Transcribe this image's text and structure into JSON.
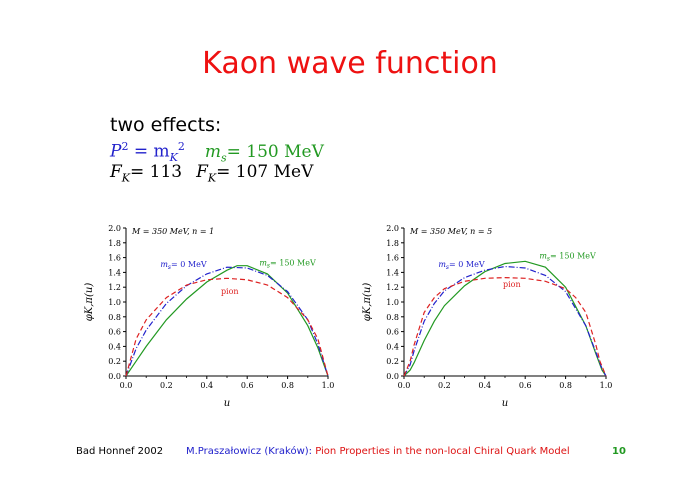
{
  "slide": {
    "title": "Kaon wave function",
    "effects_heading": "two effects:",
    "line1": {
      "p2": "P",
      "eq": " = m",
      "sub_k": "K",
      "sup2": "2",
      "ms": "m",
      "sub_s": "s",
      "ms_val": "= 150 MeV"
    },
    "line2": {
      "fk1": "F",
      "sub_k1": "K",
      "val1": "= 113",
      "fk2": "F",
      "sub_k2": "K",
      "val2": "= 107  MeV"
    }
  },
  "footer": {
    "left": "Bad Honnef 2002",
    "author": "M.Praszałowicz (Kraków):",
    "talk": "Pion Properties in the non-local Chiral Quark Model",
    "page": "10"
  },
  "chart_data": [
    {
      "type": "line",
      "annotation": "M = 350 MeV, n = 1",
      "xlabel": "u",
      "ylabel": "φK,π(u)",
      "xlim": [
        0,
        1
      ],
      "ylim": [
        0,
        2
      ],
      "xticks": [
        "0.0",
        "0.2",
        "0.4",
        "0.6",
        "0.8",
        "1.0"
      ],
      "yticks": [
        "0.0",
        "0.2",
        "0.4",
        "0.6",
        "0.8",
        "1.0",
        "1.2",
        "1.4",
        "1.6",
        "1.8",
        "2.0"
      ],
      "series": [
        {
          "name": "ms = 150 MeV",
          "color": "#229922",
          "style": "solid",
          "x": [
            0,
            0.05,
            0.1,
            0.2,
            0.3,
            0.4,
            0.5,
            0.55,
            0.6,
            0.7,
            0.8,
            0.9,
            0.95,
            1.0
          ],
          "y": [
            0,
            0.2,
            0.4,
            0.76,
            1.04,
            1.27,
            1.43,
            1.49,
            1.49,
            1.38,
            1.12,
            0.68,
            0.38,
            0
          ]
        },
        {
          "name": "ms = 0 MeV",
          "color": "#2222cc",
          "style": "dashdot",
          "x": [
            0,
            0.05,
            0.1,
            0.2,
            0.3,
            0.4,
            0.5,
            0.6,
            0.7,
            0.8,
            0.9,
            0.95,
            1.0
          ],
          "y": [
            0,
            0.37,
            0.62,
            0.98,
            1.22,
            1.38,
            1.47,
            1.46,
            1.36,
            1.14,
            0.76,
            0.43,
            0
          ]
        },
        {
          "name": "pion",
          "color": "#dd2222",
          "style": "dashed",
          "x": [
            0,
            0.05,
            0.1,
            0.2,
            0.3,
            0.4,
            0.5,
            0.6,
            0.7,
            0.8,
            0.9,
            0.95,
            1.0
          ],
          "y": [
            0,
            0.5,
            0.76,
            1.06,
            1.23,
            1.3,
            1.32,
            1.3,
            1.23,
            1.06,
            0.76,
            0.5,
            0
          ]
        }
      ],
      "labels": [
        {
          "text_main": "m",
          "text_sub": "s",
          "text_rest": "= 0 MeV",
          "color": "#2222cc",
          "at": [
            0.17,
            1.47
          ]
        },
        {
          "text_main": "m",
          "text_sub": "s",
          "text_rest": "= 150 MeV",
          "color": "#229922",
          "at": [
            0.66,
            1.49
          ]
        },
        {
          "text_main": "pion",
          "text_sub": "",
          "text_rest": "",
          "color": "#dd2222",
          "at": [
            0.47,
            1.11
          ]
        }
      ]
    },
    {
      "type": "line",
      "annotation": "M = 350 MeV, n = 5",
      "xlabel": "u",
      "ylabel": "φK,π(u)",
      "xlim": [
        0,
        1
      ],
      "ylim": [
        0,
        2
      ],
      "xticks": [
        "0.0",
        "0.2",
        "0.4",
        "0.6",
        "0.8",
        "1.0"
      ],
      "yticks": [
        "0.0",
        "0.2",
        "0.4",
        "0.6",
        "0.8",
        "1.0",
        "1.2",
        "1.4",
        "1.6",
        "1.8",
        "2.0"
      ],
      "series": [
        {
          "name": "ms = 150 MeV",
          "color": "#229922",
          "style": "solid",
          "x": [
            0,
            0.03,
            0.05,
            0.1,
            0.15,
            0.2,
            0.3,
            0.4,
            0.5,
            0.6,
            0.7,
            0.8,
            0.9,
            0.95,
            0.98,
            1.0
          ],
          "y": [
            0,
            0.08,
            0.18,
            0.48,
            0.74,
            0.95,
            1.22,
            1.41,
            1.52,
            1.55,
            1.47,
            1.2,
            0.68,
            0.3,
            0.08,
            0
          ]
        },
        {
          "name": "ms = 0 MeV",
          "color": "#2222cc",
          "style": "dashdot",
          "x": [
            0,
            0.03,
            0.05,
            0.1,
            0.15,
            0.2,
            0.3,
            0.4,
            0.5,
            0.6,
            0.7,
            0.8,
            0.9,
            0.95,
            0.98,
            1.0
          ],
          "y": [
            0,
            0.15,
            0.34,
            0.74,
            0.98,
            1.15,
            1.33,
            1.43,
            1.48,
            1.46,
            1.36,
            1.14,
            0.68,
            0.32,
            0.1,
            0
          ]
        },
        {
          "name": "pion",
          "color": "#dd2222",
          "style": "dashed",
          "x": [
            0,
            0.03,
            0.05,
            0.1,
            0.15,
            0.2,
            0.3,
            0.4,
            0.5,
            0.6,
            0.7,
            0.8,
            0.85,
            0.9,
            0.95,
            0.97,
            1.0
          ],
          "y": [
            0,
            0.2,
            0.42,
            0.86,
            1.06,
            1.18,
            1.28,
            1.32,
            1.33,
            1.32,
            1.28,
            1.18,
            1.06,
            0.86,
            0.42,
            0.2,
            0
          ]
        }
      ],
      "labels": [
        {
          "text_main": "m",
          "text_sub": "s",
          "text_rest": "= 0 MeV",
          "color": "#2222cc",
          "at": [
            0.17,
            1.47
          ]
        },
        {
          "text_main": "m",
          "text_sub": "s",
          "text_rest": "= 150 MeV",
          "color": "#229922",
          "at": [
            0.67,
            1.59
          ]
        },
        {
          "text_main": "pion",
          "text_sub": "",
          "text_rest": "",
          "color": "#dd2222",
          "at": [
            0.49,
            1.2
          ]
        }
      ]
    }
  ]
}
